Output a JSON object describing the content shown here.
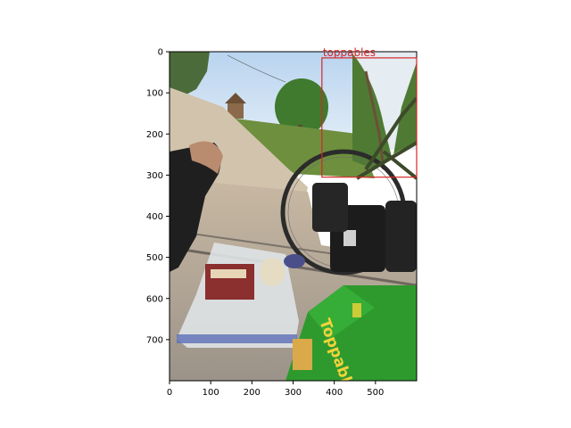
{
  "image": {
    "description_icon": "photo-of-snack-bag-and-bicycle",
    "extent": {
      "x": [
        0,
        600
      ],
      "y": [
        0,
        800
      ]
    }
  },
  "axes": {
    "x_ticks": [
      0,
      100,
      200,
      300,
      400,
      500
    ],
    "y_ticks": [
      0,
      100,
      200,
      300,
      400,
      500,
      600,
      700
    ]
  },
  "annotation": {
    "label": "toppables",
    "color": "#d62728",
    "box": {
      "x0": 370,
      "y0": 15,
      "x1": 600,
      "y1": 305
    }
  },
  "product": {
    "brand_text": "Toppables",
    "package_color": "#2e9a2e"
  }
}
